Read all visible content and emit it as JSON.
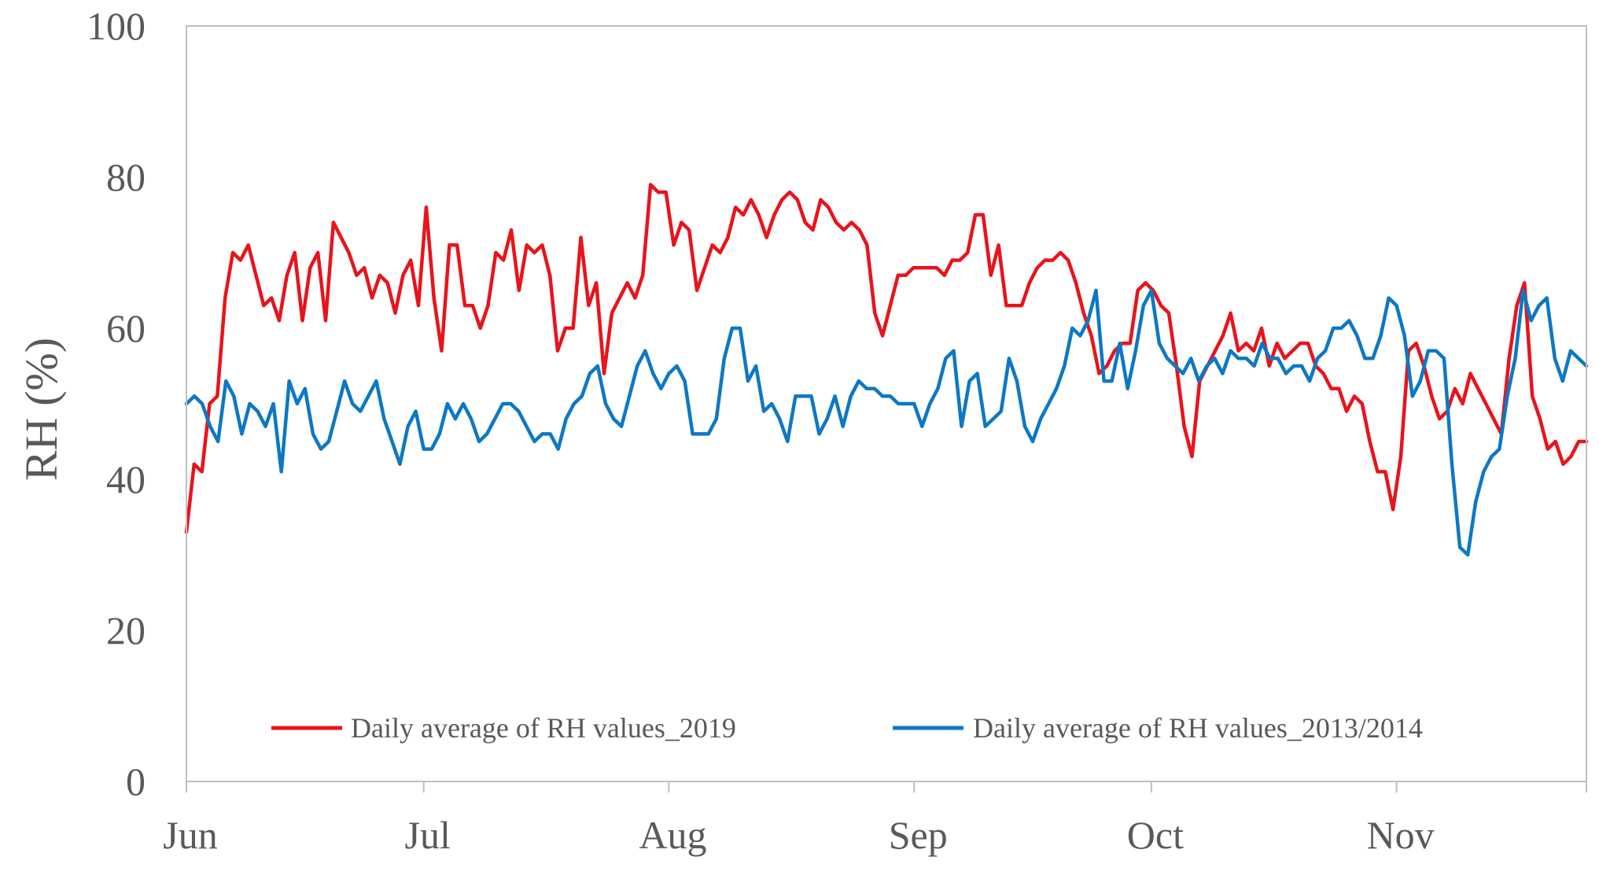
{
  "chart_data": {
    "type": "line",
    "title": "",
    "xlabel": "",
    "ylabel": "RH (%)",
    "ylim": [
      0,
      100
    ],
    "yticks": [
      0,
      20,
      40,
      60,
      80,
      100
    ],
    "x_range_days": [
      0,
      177
    ],
    "x_month_labels": [
      {
        "label": "Jun",
        "day": 0
      },
      {
        "label": "Jul",
        "day": 30
      },
      {
        "label": "Aug",
        "day": 61
      },
      {
        "label": "Sep",
        "day": 92
      },
      {
        "label": "Oct",
        "day": 122
      },
      {
        "label": "Nov",
        "day": 153
      }
    ],
    "grid": false,
    "legend_position": "bottom",
    "series": [
      {
        "name": "Daily average of RH values_2019",
        "color": "#e8141b",
        "values": [
          33,
          42,
          41,
          50,
          51,
          64,
          70,
          69,
          71,
          67,
          63,
          64,
          61,
          67,
          70,
          61,
          68,
          70,
          61,
          74,
          72,
          70,
          67,
          68,
          64,
          67,
          66,
          62,
          67,
          69,
          63,
          76,
          64,
          57,
          71,
          71,
          63,
          63,
          60,
          63,
          70,
          69,
          73,
          65,
          71,
          70,
          71,
          67,
          57,
          60,
          60,
          72,
          63,
          66,
          54,
          62,
          64,
          66,
          64,
          67,
          79,
          78,
          78,
          71,
          74,
          73,
          65,
          68,
          71,
          70,
          72,
          76,
          75,
          77,
          75,
          72,
          75,
          77,
          78,
          77,
          74,
          73,
          77,
          76,
          74,
          73,
          74,
          73,
          71,
          62,
          59,
          63,
          67,
          67,
          68,
          68,
          68,
          68,
          67,
          69,
          69,
          70,
          75,
          75,
          67,
          71,
          63,
          63,
          63,
          66,
          68,
          69,
          69,
          70,
          69,
          66,
          62,
          59,
          54,
          55,
          57,
          58,
          58,
          65,
          66,
          65,
          63,
          62,
          55,
          47,
          43,
          53,
          55,
          57,
          59,
          62,
          57,
          58,
          57,
          60,
          55,
          58,
          56,
          57,
          58,
          58,
          55,
          54,
          52,
          52,
          49,
          51,
          50,
          45,
          41,
          41,
          36,
          43,
          57,
          58,
          55,
          51,
          48,
          49,
          52,
          50,
          54,
          52,
          50,
          48,
          46,
          56,
          63,
          66,
          51,
          48,
          44,
          45,
          42,
          43,
          45,
          45
        ]
      },
      {
        "name": "Daily average of RH values_2013/2014",
        "color": "#0d78c4",
        "values": [
          50,
          51,
          50,
          47,
          45,
          53,
          51,
          46,
          50,
          49,
          47,
          50,
          41,
          53,
          50,
          52,
          46,
          44,
          45,
          49,
          53,
          50,
          49,
          51,
          53,
          48,
          45,
          42,
          47,
          49,
          44,
          44,
          46,
          50,
          48,
          50,
          48,
          45,
          46,
          48,
          50,
          50,
          49,
          47,
          45,
          46,
          46,
          44,
          48,
          50,
          51,
          54,
          55,
          50,
          48,
          47,
          51,
          55,
          57,
          54,
          52,
          54,
          55,
          53,
          46,
          46,
          46,
          48,
          56,
          60,
          60,
          53,
          55,
          49,
          50,
          48,
          45,
          51,
          51,
          51,
          46,
          48,
          51,
          47,
          51,
          53,
          52,
          52,
          51,
          51,
          50,
          50,
          50,
          47,
          50,
          52,
          56,
          57,
          47,
          53,
          54,
          47,
          48,
          49,
          56,
          53,
          47,
          45,
          48,
          50,
          52,
          55,
          60,
          59,
          61,
          65,
          53,
          53,
          58,
          52,
          57,
          63,
          65,
          58,
          56,
          55,
          54,
          56,
          53,
          55,
          56,
          54,
          57,
          56,
          56,
          55,
          58,
          56,
          56,
          54,
          55,
          55,
          53,
          56,
          57,
          60,
          60,
          61,
          59,
          56,
          56,
          59,
          64,
          63,
          59,
          51,
          53,
          57,
          57,
          56,
          42,
          31,
          30,
          37,
          41,
          43,
          44,
          51,
          56,
          65,
          61,
          63,
          64,
          56,
          53,
          57,
          56,
          55
        ]
      }
    ]
  }
}
